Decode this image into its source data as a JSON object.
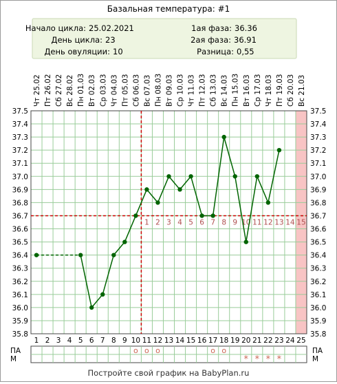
{
  "title": "Базальная температура: #1",
  "info": {
    "cycle_start_label": "Начало цикла:",
    "cycle_start": "25.02.2021",
    "cycle_day_label": "День цикла:",
    "cycle_day": "23",
    "ovulation_day_label": "День овуляции:",
    "ovulation_day": "10",
    "phase1_label": "1ая фаза:",
    "phase1": "36.36",
    "phase2_label": "2ая фаза:",
    "phase2": "36.91",
    "diff_label": "Разница:",
    "diff": "0,55"
  },
  "colors": {
    "line": "#006400",
    "grid": "#99cc99",
    "coverline": "#cc0000",
    "infoBg": "#eef5e1",
    "highlightCol": "#f8c4c4",
    "phase2Num": "#b05050",
    "marker": "#cc6655"
  },
  "footer": "Постройте свой график на BabyPlan.ru",
  "row_labels": {
    "pa": "ПА",
    "m": "М"
  },
  "chart_data": {
    "type": "line",
    "title": "Базальная температура: #1",
    "days": [
      1,
      2,
      3,
      4,
      5,
      6,
      7,
      8,
      9,
      10,
      11,
      12,
      13,
      14,
      15,
      16,
      17,
      18,
      19,
      20,
      21,
      22,
      23,
      24,
      25
    ],
    "dates": [
      "Чт 25.02",
      "Пт 26.02",
      "Сб 27.02",
      "Вс 28.02",
      "Пн 01.03",
      "Вт 02.03",
      "Ср 03.03",
      "Чт 04.03",
      "Пт 05.03",
      "Сб 06.03",
      "Вс 07.03",
      "Пн 08.03",
      "Вт 09.03",
      "Ср 10.03",
      "Чт 11.03",
      "Пт 12.03",
      "Сб 13.03",
      "Вс 14.03",
      "Пн 15.03",
      "Вт 16.03",
      "Ср 17.03",
      "Чт 18.03",
      "Пт 19.03",
      "Сб 20.03",
      "Вс 21.03"
    ],
    "temperatures": [
      36.4,
      null,
      null,
      null,
      36.4,
      36.0,
      36.1,
      36.4,
      36.5,
      36.7,
      36.9,
      36.8,
      37.0,
      36.9,
      37.0,
      36.7,
      36.7,
      37.3,
      37.0,
      36.5,
      37.0,
      36.8,
      37.2,
      null,
      null
    ],
    "ylim": [
      35.8,
      37.5
    ],
    "y_ticks": [
      "35.8",
      "35.9",
      "36.0",
      "36.1",
      "36.2",
      "36.3",
      "36.4",
      "36.5",
      "36.6",
      "36.7",
      "36.8",
      "36.9",
      "37.0",
      "37.1",
      "37.2",
      "37.3",
      "37.4",
      "37.5"
    ],
    "coverline": 36.7,
    "ovulation_day": 10,
    "highlight_day": 25,
    "phase2_numbers": [
      "1",
      "2",
      "3",
      "4",
      "5",
      "6",
      "7",
      "8",
      "9",
      "10",
      "11",
      "12",
      "13",
      "14",
      "15"
    ],
    "pa_marks": [
      10,
      11,
      12,
      17,
      18
    ],
    "pa_symbol": "o",
    "m_marks": [
      20,
      21,
      22,
      23
    ],
    "m_symbol": "*"
  }
}
